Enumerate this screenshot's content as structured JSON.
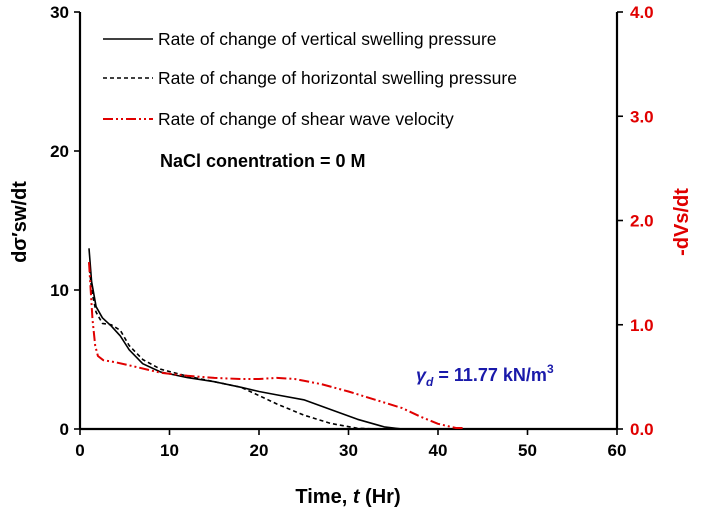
{
  "chart_data": {
    "type": "line",
    "title": "",
    "xlabel": {
      "prefix": "Time, ",
      "var": "t",
      "suffix": " (Hr)"
    },
    "ylabel_left": "dσ′sw/dt",
    "ylabel_right": "-dVs/dt",
    "xlim": [
      0,
      60
    ],
    "ylim_left": [
      0,
      30
    ],
    "ylim_right": [
      0.0,
      4.0
    ],
    "x_ticks": [
      "0",
      "10",
      "20",
      "30",
      "40",
      "50",
      "60"
    ],
    "y_left_ticks": [
      "0",
      "10",
      "20",
      "30"
    ],
    "y_right_ticks": [
      "0.0",
      "1.0",
      "2.0",
      "3.0",
      "4.0"
    ],
    "grid": false,
    "legend_position": "top-right",
    "colors": {
      "left_axis": "#000000",
      "right_axis": "#e00000",
      "annotation": "#1a1aaa"
    },
    "series": [
      {
        "name": "Rate of change of vertical swelling pressure",
        "axis": "left",
        "style": "solid",
        "color": "#000000",
        "x": [
          1,
          1.3,
          1.8,
          2.5,
          3.5,
          4.5,
          5.5,
          7,
          9,
          12,
          15,
          18,
          20,
          22,
          25,
          28,
          31,
          34,
          36
        ],
        "y": [
          13,
          10.6,
          8.8,
          8.0,
          7.4,
          6.7,
          5.7,
          4.7,
          4.1,
          3.7,
          3.4,
          3.0,
          2.7,
          2.45,
          2.1,
          1.4,
          0.7,
          0.15,
          0
        ]
      },
      {
        "name": "Rate of change of horizontal swelling pressure",
        "axis": "left",
        "style": "dashed",
        "color": "#000000",
        "x": [
          1,
          1.3,
          1.8,
          2.5,
          3.5,
          4.5,
          5.5,
          7,
          9,
          12,
          15,
          18,
          20,
          22,
          25,
          28,
          31,
          33
        ],
        "y": [
          12,
          10.0,
          8.4,
          7.6,
          7.5,
          7.1,
          6.0,
          5.0,
          4.3,
          3.8,
          3.4,
          3.0,
          2.4,
          1.8,
          1.0,
          0.4,
          0.05,
          0
        ]
      },
      {
        "name": "Rate of change of shear wave velocity",
        "axis": "right",
        "style": "dashdotdot",
        "color": "#e00000",
        "x": [
          1,
          1.4,
          1.7,
          2.0,
          2.6,
          4,
          6,
          9,
          12,
          15,
          18,
          20,
          22,
          24,
          27,
          30,
          33,
          36,
          38,
          40,
          42,
          43
        ],
        "y": [
          1.6,
          1.05,
          0.8,
          0.7,
          0.66,
          0.64,
          0.6,
          0.54,
          0.51,
          0.49,
          0.48,
          0.48,
          0.49,
          0.48,
          0.43,
          0.36,
          0.28,
          0.2,
          0.12,
          0.05,
          0.01,
          0.01
        ]
      }
    ],
    "annotations": {
      "condition": "NaCl conentration = 0 M",
      "density": {
        "symbol": "γ",
        "subscript": "d",
        "text": " = 11.77 kN/m",
        "sup": "3"
      }
    }
  }
}
